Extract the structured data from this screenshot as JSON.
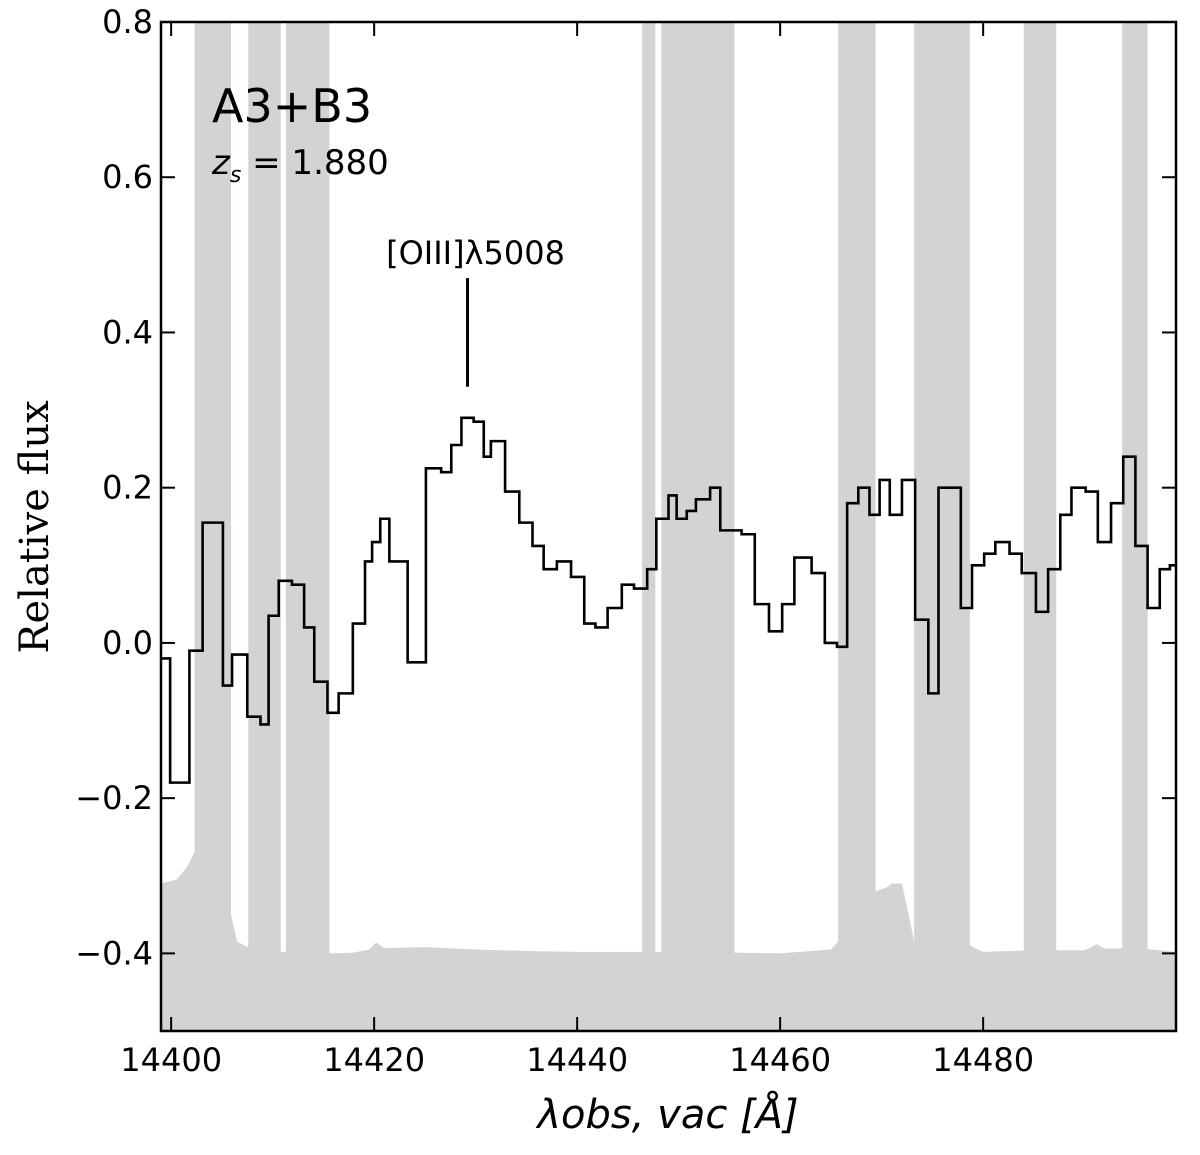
{
  "chart_data": {
    "type": "line",
    "title": "",
    "xlabel": "λobs, vac [Å]",
    "ylabel": "Relative flux",
    "xlim": [
      14399,
      14499
    ],
    "ylim": [
      -0.5,
      0.8
    ],
    "x_ticks": [
      14400,
      14420,
      14440,
      14460,
      14480
    ],
    "x_tick_labels": [
      "14400",
      "14420",
      "14440",
      "14460",
      "14480"
    ],
    "y_ticks": [
      -0.4,
      -0.2,
      0.0,
      0.2,
      0.4,
      0.6,
      0.8
    ],
    "y_tick_labels": [
      "−0.4",
      "−0.2",
      "0.0",
      "0.2",
      "0.4",
      "0.6",
      "0.8"
    ],
    "grid": false,
    "annotations": {
      "object_label": "A3+B3",
      "redshift_label": "z",
      "redshift_sub": "s",
      "redshift_value": " = 1.880",
      "line_label": "[OIII]λ5008",
      "line_position": 14429.2,
      "line_marker_range": [
        0.33,
        0.47
      ]
    },
    "colors": {
      "spectrum": "#000000",
      "shading": "#d4d2d4",
      "frame": "#000000"
    },
    "sky_bands": [
      [
        14402.3,
        14405.9
      ],
      [
        14407.6,
        14410.8
      ],
      [
        14411.3,
        14415.6
      ],
      [
        14446.4,
        14447.7
      ],
      [
        14448.3,
        14455.5
      ],
      [
        14465.7,
        14469.4
      ],
      [
        14473.2,
        14478.7
      ],
      [
        14484.0,
        14487.2
      ],
      [
        14493.7,
        14496.2
      ]
    ],
    "noise_floor": {
      "x": [
        14399,
        14400.5,
        14401.5,
        14402.3,
        14403.5,
        14405.5,
        14405.9,
        14406.5,
        14408,
        14410,
        14412,
        14414,
        14416,
        14418,
        14419.5,
        14420.2,
        14421,
        14425,
        14430,
        14435,
        14440,
        14445,
        14450,
        14455,
        14460,
        14465,
        14465.7,
        14469.4,
        14470.5,
        14471,
        14472,
        14472.5,
        14473.2,
        14478.7,
        14480,
        14485,
        14490,
        14491.2,
        14492,
        14495,
        14499
      ],
      "y": [
        -0.31,
        -0.305,
        -0.29,
        -0.27,
        -0.26,
        -0.25,
        -0.35,
        -0.385,
        -0.395,
        -0.398,
        -0.398,
        -0.399,
        -0.4,
        -0.399,
        -0.395,
        -0.386,
        -0.393,
        -0.392,
        -0.395,
        -0.397,
        -0.398,
        -0.398,
        -0.398,
        -0.399,
        -0.4,
        -0.395,
        -0.385,
        -0.32,
        -0.315,
        -0.31,
        -0.31,
        -0.34,
        -0.385,
        -0.39,
        -0.398,
        -0.396,
        -0.396,
        -0.388,
        -0.394,
        -0.393,
        -0.398
      ]
    },
    "series": [
      {
        "x": [
          14399,
          14399.9,
          14401.8,
          14403.1,
          14405.1,
          14406.0,
          14407.5,
          14408.8,
          14409.6,
          14410.6,
          14411.9,
          14413.1,
          14414.1,
          14415.4,
          14416.5,
          14417.9,
          14419.1,
          14419.8,
          14420.6,
          14421.5,
          14423.3,
          14425.1,
          14426.6,
          14427.6,
          14428.6,
          14429.8,
          14430.8,
          14431.5,
          14432.9,
          14434.3,
          14435.6,
          14436.7,
          14438.0,
          14439.4,
          14440.7,
          14441.8,
          14443.0,
          14444.4,
          14445.6,
          14446.9,
          14447.8,
          14449.0,
          14449.8,
          14450.8,
          14451.7,
          14453.1,
          14454.1,
          14455.3,
          14456.2,
          14457.5,
          14458.9,
          14460.2,
          14461.4,
          14463.1,
          14464.4,
          14465.6,
          14466.6,
          14467.7,
          14468.8,
          14469.8,
          14470.8,
          14472.0,
          14473.3,
          14474.6,
          14475.6,
          14476.7,
          14477.8,
          14478.9,
          14480.1,
          14481.2,
          14482.6,
          14483.8,
          14485.2,
          14486.4,
          14487.6,
          14488.7,
          14490.1,
          14491.3,
          14492.6,
          14493.8,
          14495.0,
          14496.2,
          14497.4,
          14498.4
        ],
        "values": [
          -0.02,
          -0.18,
          -0.01,
          0.155,
          -0.055,
          -0.015,
          -0.095,
          -0.105,
          0.035,
          0.08,
          0.075,
          0.02,
          -0.05,
          -0.09,
          -0.065,
          0.025,
          0.105,
          0.13,
          0.16,
          0.105,
          -0.025,
          0.225,
          0.22,
          0.255,
          0.29,
          0.285,
          0.24,
          0.26,
          0.195,
          0.155,
          0.125,
          0.095,
          0.105,
          0.085,
          0.025,
          0.02,
          0.045,
          0.075,
          0.07,
          0.095,
          0.16,
          0.19,
          0.16,
          0.17,
          0.185,
          0.2,
          0.145,
          0.145,
          0.14,
          0.05,
          0.015,
          0.05,
          0.11,
          0.09,
          0.0,
          -0.005,
          0.18,
          0.2,
          0.165,
          0.21,
          0.165,
          0.21,
          0.03,
          -0.065,
          0.2,
          0.2,
          0.045,
          0.1,
          0.115,
          0.13,
          0.115,
          0.09,
          0.04,
          0.095,
          0.165,
          0.2,
          0.195,
          0.13,
          0.18,
          0.24,
          0.125,
          0.045,
          0.095,
          0.1
        ]
      }
    ]
  }
}
